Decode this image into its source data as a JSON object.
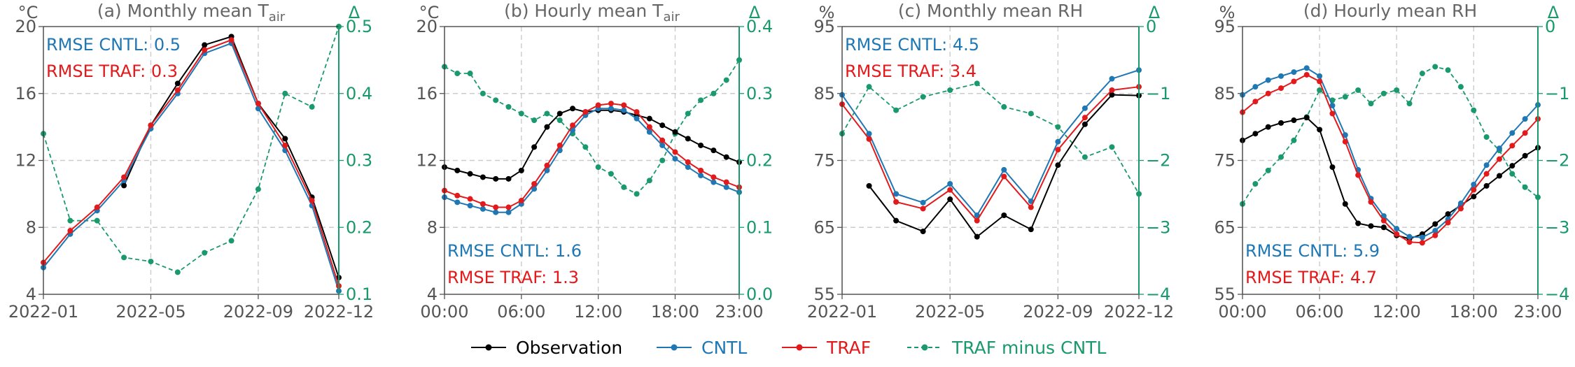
{
  "colors": {
    "observation": "#000000",
    "cntl": "#1f77b4",
    "traf": "#e31a1c",
    "diff": "#1a9a6c",
    "axis": "#555555",
    "grid": "#cccccc"
  },
  "legend": {
    "observation": "Observation",
    "cntl": "CNTL",
    "traf": "TRAF",
    "diff": "TRAF minus CNTL"
  },
  "chart_data": [
    {
      "type": "line",
      "title": "(a) Monthly mean T",
      "title_sub": "air",
      "ylabel_left": "°C",
      "ylabel_right": "Δ",
      "ylim": [
        4,
        20
      ],
      "yticks": [
        4,
        8,
        12,
        16,
        20
      ],
      "ylim_right": [
        0.1,
        0.5
      ],
      "yticks_right": [
        0.1,
        0.2,
        0.3,
        0.4,
        0.5
      ],
      "x": [
        0,
        1,
        2,
        3,
        4,
        5,
        6,
        7,
        8,
        9,
        10,
        11
      ],
      "xlim": [
        0,
        11
      ],
      "xticks": [
        0,
        4,
        8,
        11
      ],
      "xticklabels": [
        "2022-01",
        "2022-05",
        "2022-09",
        "2022-12"
      ],
      "grid": true,
      "rmse": {
        "cntl": "RMSE CNTL: 0.5",
        "traf": "RMSE TRAF: 0.3",
        "position": "top-left"
      },
      "series": [
        {
          "key": "observation",
          "values": [
            null,
            null,
            null,
            10.5,
            14.1,
            16.6,
            18.9,
            19.4,
            15.4,
            13.3,
            9.8,
            5.0
          ]
        },
        {
          "key": "cntl",
          "values": [
            5.6,
            7.6,
            9.0,
            10.8,
            13.9,
            16.0,
            18.4,
            19.0,
            15.1,
            12.6,
            9.3,
            4.2
          ]
        },
        {
          "key": "traf",
          "values": [
            5.9,
            7.8,
            9.2,
            11.0,
            14.1,
            16.2,
            18.6,
            19.2,
            15.4,
            12.9,
            9.6,
            4.5
          ]
        },
        {
          "key": "diff",
          "axis": "right",
          "values": [
            0.34,
            0.21,
            0.21,
            0.155,
            0.149,
            0.133,
            0.162,
            0.18,
            0.257,
            0.4,
            0.38,
            0.5
          ]
        }
      ]
    },
    {
      "type": "line",
      "title": "(b) Hourly mean T",
      "title_sub": "air",
      "ylabel_left": "°C",
      "ylabel_right": "Δ",
      "ylim": [
        4,
        20
      ],
      "yticks": [
        4,
        8,
        12,
        16,
        20
      ],
      "ylim_right": [
        0.0,
        0.4
      ],
      "yticks_right": [
        0.0,
        0.1,
        0.2,
        0.3,
        0.4
      ],
      "x": [
        0,
        1,
        2,
        3,
        4,
        5,
        6,
        7,
        8,
        9,
        10,
        11,
        12,
        13,
        14,
        15,
        16,
        17,
        18,
        19,
        20,
        21,
        22,
        23
      ],
      "xlim": [
        0,
        23
      ],
      "xticks": [
        0,
        6,
        12,
        18,
        23
      ],
      "xticklabels": [
        "00:00",
        "06:00",
        "12:00",
        "18:00",
        "23:00"
      ],
      "grid": true,
      "rmse": {
        "cntl": "RMSE CNTL: 1.6",
        "traf": "RMSE TRAF: 1.3",
        "position": "bottom-left"
      },
      "series": [
        {
          "key": "observation",
          "values": [
            11.6,
            11.4,
            11.2,
            11.0,
            10.9,
            10.9,
            11.4,
            12.8,
            14.0,
            14.8,
            15.1,
            14.9,
            15.0,
            15.0,
            14.9,
            14.7,
            14.5,
            14.1,
            13.7,
            13.3,
            12.9,
            12.6,
            12.2,
            11.9
          ]
        },
        {
          "key": "cntl",
          "values": [
            9.8,
            9.5,
            9.3,
            9.1,
            8.9,
            8.9,
            9.4,
            10.3,
            11.4,
            12.6,
            13.8,
            14.7,
            15.1,
            15.1,
            15.0,
            14.5,
            13.7,
            12.9,
            12.1,
            11.6,
            11.1,
            10.7,
            10.4,
            10.1
          ]
        },
        {
          "key": "traf",
          "values": [
            10.2,
            9.9,
            9.7,
            9.4,
            9.2,
            9.2,
            9.6,
            10.6,
            11.7,
            12.9,
            14.1,
            14.9,
            15.3,
            15.4,
            15.3,
            14.9,
            14.0,
            13.2,
            12.5,
            11.9,
            11.4,
            11.0,
            10.7,
            10.4
          ]
        },
        {
          "key": "diff",
          "axis": "right",
          "values": [
            0.34,
            0.33,
            0.33,
            0.3,
            0.29,
            0.28,
            0.27,
            0.26,
            0.27,
            0.26,
            0.24,
            0.22,
            0.19,
            0.18,
            0.16,
            0.15,
            0.17,
            0.2,
            0.24,
            0.27,
            0.29,
            0.3,
            0.32,
            0.35
          ]
        }
      ]
    },
    {
      "type": "line",
      "title": "(c) Monthly mean RH",
      "title_sub": "",
      "ylabel_left": "%",
      "ylabel_right": "Δ",
      "ylim": [
        55,
        95
      ],
      "yticks": [
        55,
        65,
        75,
        85,
        95
      ],
      "ylim_right": [
        -4,
        0
      ],
      "yticks_right": [
        -4,
        -3,
        -2,
        -1,
        0
      ],
      "x": [
        0,
        1,
        2,
        3,
        4,
        5,
        6,
        7,
        8,
        9,
        10,
        11
      ],
      "xlim": [
        0,
        11
      ],
      "xticks": [
        0,
        4,
        8,
        11
      ],
      "xticklabels": [
        "2022-01",
        "2022-05",
        "2022-09",
        "2022-12"
      ],
      "grid": true,
      "rmse": {
        "cntl": "RMSE CNTL: 4.5",
        "traf": "RMSE TRAF: 3.4",
        "position": "top-left"
      },
      "series": [
        {
          "key": "observation",
          "values": [
            null,
            71.2,
            66.0,
            64.4,
            69.2,
            63.6,
            66.8,
            64.7,
            74.3,
            80.4,
            84.8,
            84.7
          ]
        },
        {
          "key": "cntl",
          "values": [
            84.8,
            79.0,
            70.0,
            68.7,
            71.5,
            66.8,
            73.6,
            68.9,
            77.8,
            82.8,
            87.2,
            88.5
          ]
        },
        {
          "key": "traf",
          "values": [
            83.4,
            78.2,
            68.8,
            67.8,
            70.6,
            66.0,
            72.6,
            68.0,
            76.6,
            81.4,
            85.5,
            86.0
          ]
        },
        {
          "key": "diff",
          "axis": "right",
          "values": [
            -1.6,
            -0.9,
            -1.25,
            -1.05,
            -0.95,
            -0.85,
            -1.2,
            -1.3,
            -1.5,
            -1.95,
            -1.8,
            -2.5
          ]
        }
      ]
    },
    {
      "type": "line",
      "title": "(d) Hourly mean RH",
      "title_sub": "",
      "ylabel_left": "%",
      "ylabel_right": "Δ",
      "ylim": [
        55,
        95
      ],
      "yticks": [
        55,
        65,
        75,
        85,
        95
      ],
      "ylim_right": [
        -4,
        0
      ],
      "yticks_right": [
        -4,
        -3,
        -2,
        -1,
        0
      ],
      "x": [
        0,
        1,
        2,
        3,
        4,
        5,
        6,
        7,
        8,
        9,
        10,
        11,
        12,
        13,
        14,
        15,
        16,
        17,
        18,
        19,
        20,
        21,
        22,
        23
      ],
      "xlim": [
        0,
        23
      ],
      "xticks": [
        0,
        6,
        12,
        18,
        23
      ],
      "xticklabels": [
        "00:00",
        "06:00",
        "12:00",
        "18:00",
        "23:00"
      ],
      "grid": true,
      "rmse": {
        "cntl": "RMSE CNTL: 5.9",
        "traf": "RMSE TRAF: 4.7",
        "position": "bottom-left"
      },
      "series": [
        {
          "key": "observation",
          "values": [
            78.0,
            79.0,
            80.0,
            80.6,
            81.0,
            81.4,
            79.6,
            74.0,
            68.5,
            65.6,
            65.2,
            65.0,
            63.8,
            63.3,
            64.0,
            65.5,
            67.0,
            68.3,
            69.6,
            71.2,
            72.7,
            74.2,
            75.7,
            76.9
          ]
        },
        {
          "key": "cntl",
          "values": [
            84.8,
            86.0,
            87.0,
            87.6,
            88.2,
            88.8,
            87.6,
            83.2,
            78.8,
            73.6,
            69.3,
            66.7,
            64.8,
            63.6,
            63.5,
            64.5,
            66.2,
            68.6,
            71.4,
            74.3,
            76.8,
            79.1,
            81.2,
            83.3
          ]
        },
        {
          "key": "traf",
          "values": [
            82.2,
            83.8,
            85.0,
            85.8,
            86.8,
            87.8,
            86.8,
            82.0,
            77.8,
            72.8,
            68.8,
            66.0,
            64.0,
            62.8,
            62.7,
            63.8,
            65.7,
            67.8,
            70.6,
            73.0,
            75.2,
            77.2,
            79.1,
            81.2
          ]
        },
        {
          "key": "diff",
          "axis": "right",
          "values": [
            -2.65,
            -2.35,
            -2.15,
            -1.95,
            -1.7,
            -1.35,
            -0.95,
            -1.1,
            -1.05,
            -0.95,
            -1.15,
            -1.0,
            -0.95,
            -1.15,
            -0.7,
            -0.6,
            -0.65,
            -0.9,
            -1.25,
            -1.65,
            -1.85,
            -2.2,
            -2.4,
            -2.55
          ]
        }
      ]
    }
  ]
}
